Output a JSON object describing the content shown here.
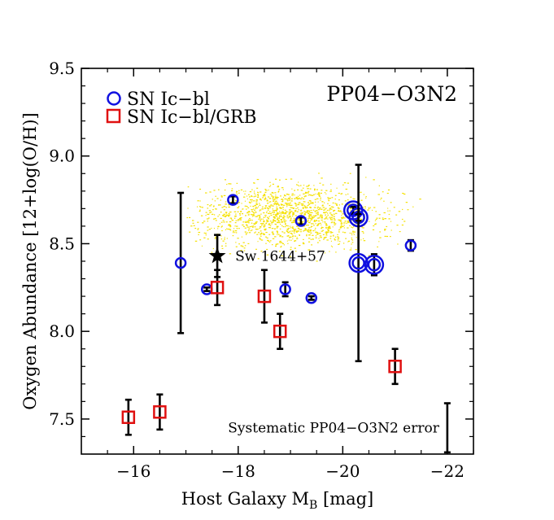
{
  "chart_data": {
    "type": "scatter",
    "title": "PP04−O3N2",
    "xlabel": "Host Galaxy M",
    "xlabel_sub": "B",
    "xlabel_unit": " [mag]",
    "ylabel": "Oxygen Abundance [12+log(O/H)]",
    "xlim": [
      -15.0,
      -22.5
    ],
    "ylim": [
      7.3,
      9.5
    ],
    "x_ticks": [
      -16,
      -18,
      -20,
      -22
    ],
    "x_tick_labels": [
      "−16",
      "−18",
      "−20",
      "−22"
    ],
    "y_ticks": [
      7.5,
      8.0,
      8.5,
      9.0,
      9.5
    ],
    "y_tick_labels": [
      "7.5",
      "8.0",
      "8.5",
      "9.0",
      "9.5"
    ],
    "legend": {
      "position": "top-left",
      "entries": [
        {
          "label": "SN Ic−bl",
          "marker": "circle",
          "color": "#1010e0"
        },
        {
          "label": "SN Ic−bl/GRB",
          "marker": "square",
          "color": "#e01010"
        }
      ]
    },
    "background_cloud": {
      "color": "#f5e100",
      "x_center": -19.0,
      "y_center": 8.66,
      "x_range": [
        -17.0,
        -21.5
      ],
      "y_range": [
        8.1,
        8.95
      ]
    },
    "series": [
      {
        "name": "SN Ic−bl",
        "marker": "circle",
        "color": "#1010e0",
        "points": [
          {
            "x": -16.9,
            "y": 8.39,
            "err": 0.4,
            "big": false
          },
          {
            "x": -17.4,
            "y": 8.24,
            "err": 0.01,
            "big": false
          },
          {
            "x": -17.9,
            "y": 8.75,
            "err": 0.02,
            "big": false
          },
          {
            "x": -18.9,
            "y": 8.24,
            "err": 0.04,
            "big": false
          },
          {
            "x": -19.2,
            "y": 8.63,
            "err": 0.02,
            "big": false
          },
          {
            "x": -19.4,
            "y": 8.19,
            "err": 0.01,
            "big": false
          },
          {
            "x": -20.2,
            "y": 8.69,
            "err": 0.02,
            "big": true
          },
          {
            "x": -20.3,
            "y": 8.65,
            "err": 0.02,
            "big": true
          },
          {
            "x": -20.3,
            "y": 8.39,
            "err": 0.56,
            "big": true
          },
          {
            "x": -20.6,
            "y": 8.38,
            "err": 0.06,
            "big": true
          },
          {
            "x": -21.3,
            "y": 8.49,
            "err": 0.03,
            "big": false
          }
        ]
      },
      {
        "name": "SN Ic−bl/GRB",
        "marker": "square",
        "color": "#e01010",
        "points": [
          {
            "x": -15.9,
            "y": 7.51,
            "err": 0.1
          },
          {
            "x": -16.5,
            "y": 7.54,
            "err": 0.1
          },
          {
            "x": -17.6,
            "y": 8.25,
            "err": 0.1
          },
          {
            "x": -18.5,
            "y": 8.2,
            "err": 0.15
          },
          {
            "x": -18.8,
            "y": 8.0,
            "err": 0.1
          },
          {
            "x": -21.0,
            "y": 7.8,
            "err": 0.1
          }
        ]
      }
    ],
    "reference_object": {
      "label": "Sw 1644+57",
      "marker": "star",
      "x": -17.6,
      "y": 8.43,
      "err": 0.12
    },
    "systematic_error": {
      "label": "Systematic PP04−O3N2 error",
      "x": -22.0,
      "y": 7.45,
      "err": 0.14
    }
  }
}
